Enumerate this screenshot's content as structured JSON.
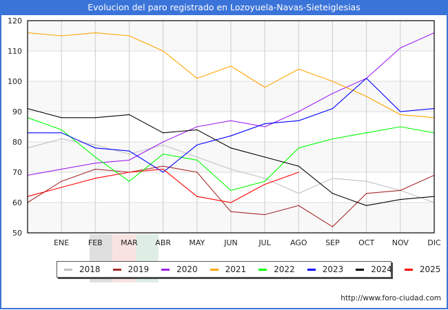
{
  "title": "Evolucion del paro registrado en Lozoyuela-Navas-Sieteiglesias",
  "footer": "http://www.foro-ciudad.com",
  "chart_data": {
    "type": "line",
    "title": "Evolucion del paro registrado en Lozoyuela-Navas-Sieteiglesias",
    "xlabel": "",
    "ylabel": "",
    "categories": [
      "",
      "ENE",
      "FEB",
      "MAR",
      "ABR",
      "MAY",
      "JUN",
      "JUL",
      "AGO",
      "SEP",
      "OCT",
      "NOV",
      "DIC"
    ],
    "yticks": [
      50,
      60,
      70,
      80,
      90,
      100,
      110,
      120
    ],
    "ylim": [
      50,
      120
    ],
    "grid": true,
    "legend_position": "bottom",
    "series": [
      {
        "name": "2018",
        "color": "#c0c0c0",
        "values": [
          78,
          81,
          79,
          76,
          79,
          75,
          71,
          68,
          63,
          68,
          67,
          64,
          60
        ]
      },
      {
        "name": "2019",
        "color": "#a52a2a",
        "values": [
          60,
          67,
          71,
          70,
          72,
          70,
          57,
          56,
          59,
          52,
          63,
          64,
          69
        ]
      },
      {
        "name": "2020",
        "color": "#a020f0",
        "values": [
          69,
          71,
          73,
          74,
          80,
          85,
          87,
          85,
          90,
          96,
          101,
          111,
          116
        ]
      },
      {
        "name": "2021",
        "color": "#ffa500",
        "values": [
          116,
          115,
          116,
          115,
          110,
          101,
          105,
          98,
          104,
          100,
          95,
          89,
          88
        ]
      },
      {
        "name": "2022",
        "color": "#00ff00",
        "values": [
          88,
          84,
          75,
          67,
          76,
          74,
          64,
          67,
          78,
          81,
          83,
          85,
          83
        ]
      },
      {
        "name": "2023",
        "color": "#0000ff",
        "values": [
          83,
          83,
          78,
          77,
          70,
          79,
          82,
          86,
          87,
          91,
          101,
          90,
          91
        ]
      },
      {
        "name": "2024",
        "color": "#000000",
        "values": [
          91,
          88,
          88,
          89,
          83,
          84,
          78,
          75,
          72,
          63,
          59,
          61,
          62
        ]
      },
      {
        "name": "2025",
        "color": "#ff0000",
        "values": [
          62,
          65,
          68,
          70,
          71,
          62,
          60,
          66,
          70
        ]
      }
    ]
  }
}
